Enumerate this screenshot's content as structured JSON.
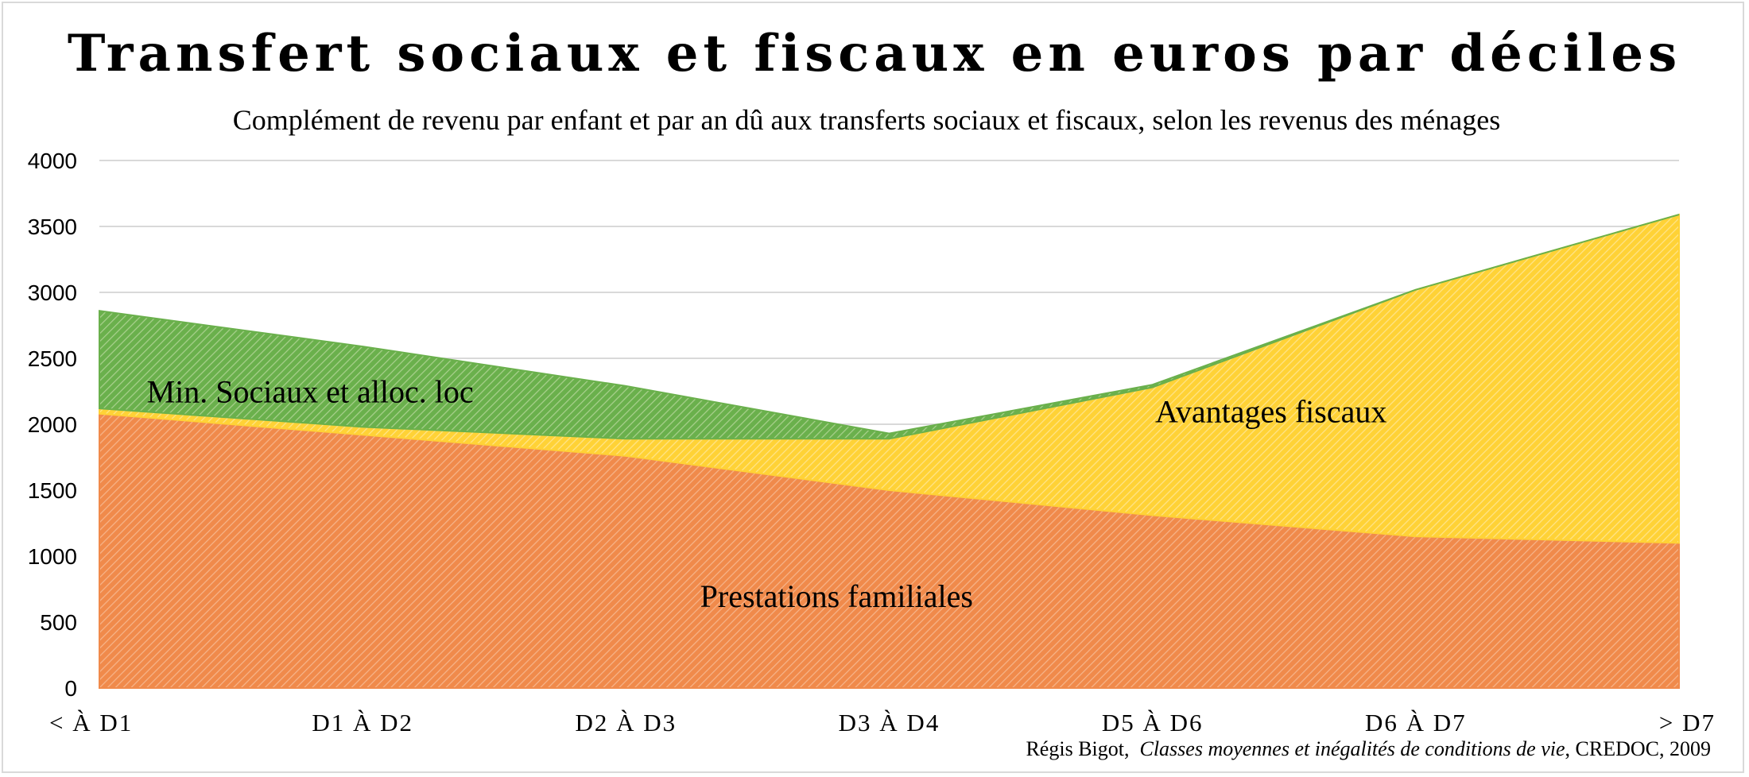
{
  "chart_data": {
    "type": "area",
    "stacked": true,
    "title": "Transfert sociaux et fiscaux en euros par déciles",
    "subtitle": "Complément de revenu par enfant et par an dû aux transferts sociaux et fiscaux, selon les revenus des ménages",
    "source_author": "Régis Bigot,",
    "source_title": "Classes moyennes et inégalités de conditions de vie",
    "source_tail": ", CREDOC, 2009",
    "categories": [
      "< À D1",
      "D1 À D2",
      "D2 À D3",
      "D3 À D4",
      "D5 À D6",
      "D6 À D7",
      "> D7"
    ],
    "y_ticks": [
      "0",
      "500",
      "1000",
      "1500",
      "2000",
      "2500",
      "3000",
      "3500",
      "4000"
    ],
    "ylim": [
      0,
      4000
    ],
    "grid": true,
    "series": [
      {
        "name": "Prestations familiales",
        "values": [
          2080,
          1920,
          1760,
          1500,
          1310,
          1150,
          1100
        ],
        "color": "#f08a4b",
        "hatch": "#f6b48a"
      },
      {
        "name": "Avantages fiscaux",
        "values": [
          40,
          60,
          130,
          390,
          970,
          1870,
          2490
        ],
        "color": "#ffd236",
        "hatch": "#ffe48a"
      },
      {
        "name": "Min. Sociaux et alloc. loc",
        "values": [
          740,
          610,
          400,
          40,
          20,
          0,
          0
        ],
        "color": "#6ab04c",
        "hatch": "#a8d08d"
      }
    ],
    "area_labels": [
      {
        "series": 0,
        "text": "Prestations familiales",
        "x": 2.8,
        "y": 700
      },
      {
        "series": 1,
        "text": "Avantages fiscaux",
        "x": 4.45,
        "y": 2100
      },
      {
        "series": 2,
        "text": "Min. Sociaux et alloc. loc",
        "x": 0.18,
        "y": 2250
      }
    ]
  }
}
